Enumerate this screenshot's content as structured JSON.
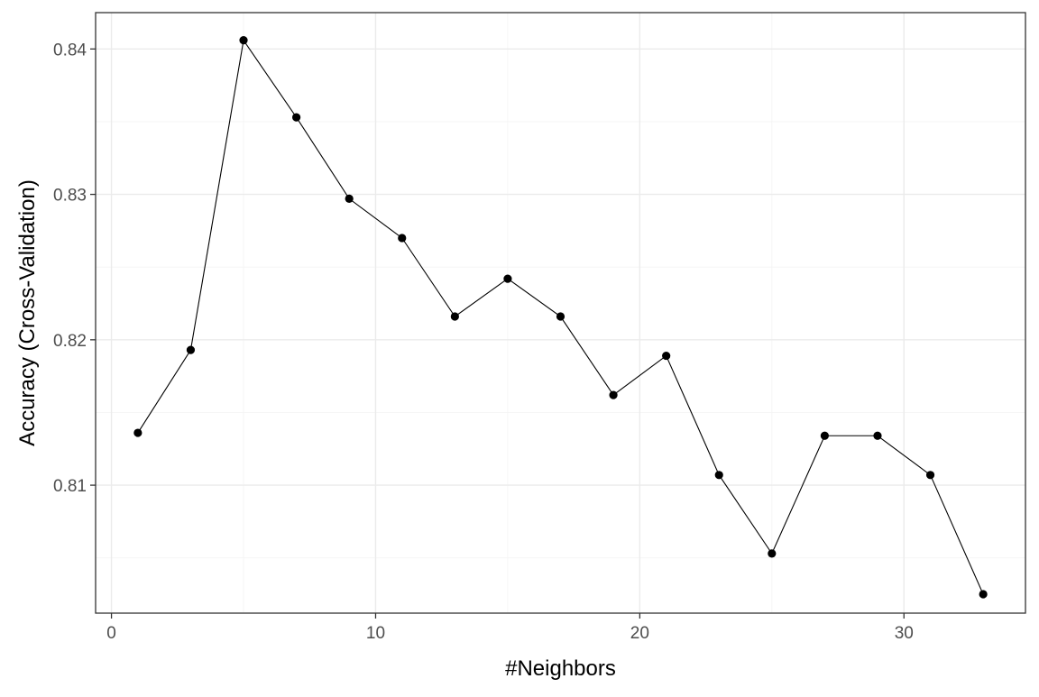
{
  "chart_data": {
    "type": "line",
    "title": "",
    "xlabel": "#Neighbors",
    "ylabel": "Accuracy (Cross-Validation)",
    "xlim": [
      -0.6,
      34.6
    ],
    "ylim": [
      0.8012,
      0.8425
    ],
    "x_ticks": [
      0,
      10,
      20,
      30
    ],
    "x_tick_labels": [
      "0",
      "10",
      "20",
      "30"
    ],
    "x_minor_ticks": [
      5,
      15,
      25
    ],
    "y_ticks": [
      0.81,
      0.82,
      0.83,
      0.84
    ],
    "y_tick_labels": [
      "0.81",
      "0.82",
      "0.83",
      "0.84"
    ],
    "y_minor_ticks": [
      0.805,
      0.815,
      0.825,
      0.835
    ],
    "grid": true,
    "legend": "none",
    "series": [
      {
        "color": "#000000",
        "x": [
          1,
          3,
          5,
          7,
          9,
          11,
          13,
          15,
          17,
          19,
          21,
          23,
          25,
          27,
          29,
          31,
          33
        ],
        "y": [
          0.8136,
          0.8193,
          0.8406,
          0.8353,
          0.8297,
          0.827,
          0.8216,
          0.8242,
          0.8216,
          0.8162,
          0.8189,
          0.8107,
          0.8053,
          0.8134,
          0.8134,
          0.8107,
          0.8025
        ]
      }
    ]
  }
}
